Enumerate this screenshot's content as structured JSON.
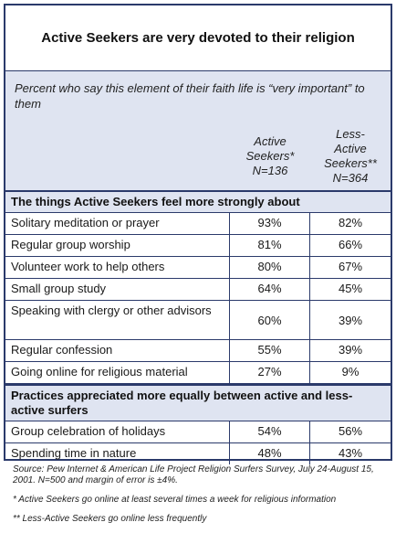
{
  "chart_data": {
    "type": "table",
    "title": "Active Seekers are very devoted to their religion",
    "subtitle": "Percent who say this element of their faith life is “very important” to them",
    "columns": [
      {
        "line1": "Active",
        "line2": "Seekers*",
        "line3": "N=136"
      },
      {
        "line1": "Less-",
        "line2": "Active",
        "line3": "Seekers**",
        "line4": "N=364"
      }
    ],
    "sections": [
      {
        "heading": "The things Active Seekers feel more strongly about",
        "rows": [
          {
            "label": "Solitary meditation or prayer",
            "active": "93%",
            "less_active": "82%"
          },
          {
            "label": "Regular group worship",
            "active": "81%",
            "less_active": "66%"
          },
          {
            "label": "Volunteer work to help others",
            "active": "80%",
            "less_active": "67%"
          },
          {
            "label": "Small group study",
            "active": "64%",
            "less_active": "45%"
          },
          {
            "label": "Speaking with clergy or other advisors",
            "active": "60%",
            "less_active": "39%"
          },
          {
            "label": "Regular confession",
            "active": "55%",
            "less_active": "39%"
          },
          {
            "label": "Going online for religious material",
            "active": "27%",
            "less_active": "9%"
          }
        ]
      },
      {
        "heading": "Practices appreciated more equally between active and less-active surfers",
        "rows": [
          {
            "label": "Group celebration of holidays",
            "active": "54%",
            "less_active": "56%"
          },
          {
            "label": "Spending time in nature",
            "active": "48%",
            "less_active": "43%"
          }
        ]
      }
    ]
  },
  "notes": {
    "source": "Source:  Pew Internet & American Life Project Religion Surfers Survey, July 24-August 15, 2001. N=500 and margin of error is ±4%.",
    "note1": "* Active Seekers go online at least several times a week for religious information",
    "note2": "** Less-Active Seekers go online less frequently"
  }
}
